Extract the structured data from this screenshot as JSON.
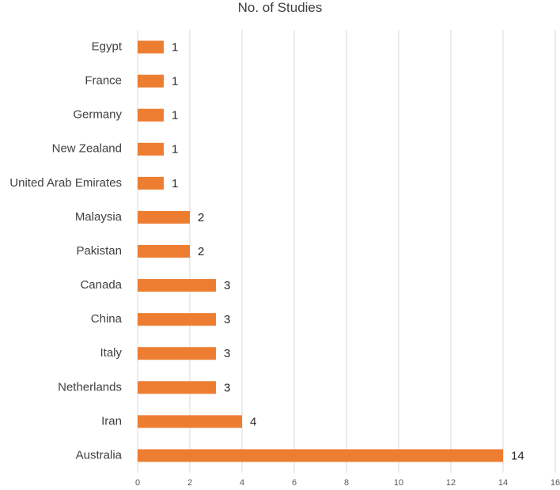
{
  "chart_data": {
    "type": "bar",
    "orientation": "horizontal",
    "title": "No. of Studies",
    "categories": [
      "Egypt",
      "France",
      "Germany",
      "New Zealand",
      "United Arab Emirates",
      "Malaysia",
      "Pakistan",
      "Canada",
      "China",
      "Italy",
      "Netherlands",
      "Iran",
      "Australia"
    ],
    "values": [
      1,
      1,
      1,
      1,
      1,
      2,
      2,
      3,
      3,
      3,
      3,
      4,
      14
    ],
    "xticks": [
      0,
      2,
      4,
      6,
      8,
      10,
      12,
      14,
      16
    ],
    "xlim": [
      0,
      16
    ],
    "grid": "vertical",
    "legend": "none",
    "data_labels": true,
    "bar_color": "#ED7D31"
  }
}
